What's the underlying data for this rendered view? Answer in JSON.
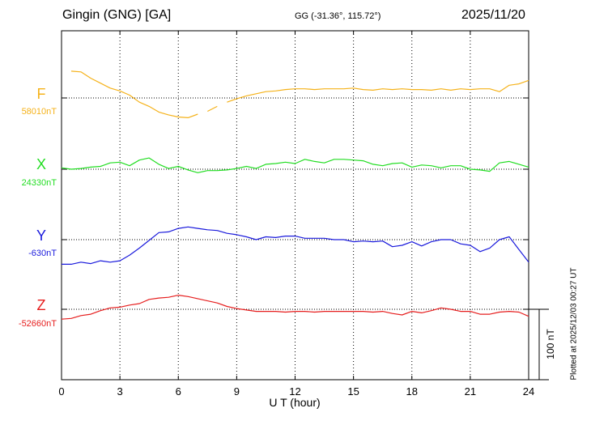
{
  "header": {
    "station": "Gingin (GNG)  [GA]",
    "coords": "GG (-31.36°, 115.72°)",
    "date": "2025/11/20"
  },
  "footer": {
    "plotted": "Plotted at 2025/12/03 00:27 UT"
  },
  "chart_data": {
    "type": "line",
    "title": "Gingin (GNG)  [GA]",
    "xlabel": "U T (hour)",
    "xlim": [
      0,
      24
    ],
    "xticks": [
      0,
      3,
      6,
      9,
      12,
      15,
      18,
      21,
      24
    ],
    "grid": true,
    "scale_bar": {
      "label": "100 nT",
      "value_nT": 100
    },
    "series": [
      {
        "name": "F",
        "baseline_label": "58010nT",
        "color": "#f5b21a",
        "x": [
          0.5,
          1.0,
          1.5,
          2.0,
          2.5,
          3.0,
          3.5,
          4.0,
          4.5,
          5.0,
          5.5,
          6.0,
          6.5,
          7.0,
          7.5,
          8.0,
          8.5,
          9.0,
          9.5,
          10.0,
          10.5,
          11.0,
          11.5,
          12.0,
          12.5,
          13.0,
          13.5,
          14.0,
          14.5,
          15.0,
          15.5,
          16.0,
          16.5,
          17.0,
          17.5,
          18.0,
          18.5,
          19.0,
          19.5,
          20.0,
          20.5,
          21.0,
          21.5,
          22.0,
          22.5,
          23.0,
          23.5,
          24.0
        ],
        "y": [
          38,
          37,
          28,
          21,
          14,
          10,
          4,
          -6,
          -12,
          -20,
          -24,
          -27,
          -28,
          -23,
          -19,
          -12,
          -6,
          -1,
          3,
          6,
          9,
          10,
          12,
          13,
          13,
          12,
          13,
          13,
          13,
          14,
          12,
          11,
          13,
          12,
          13,
          12,
          12,
          11,
          13,
          11,
          13,
          12,
          13,
          13,
          9,
          18,
          20,
          25
        ],
        "gaps_after_x": [
          7.0,
          8.0
        ]
      },
      {
        "name": "X",
        "baseline_label": "24330nT",
        "color": "#22dd22",
        "x": [
          0,
          0.5,
          1.0,
          1.5,
          2.0,
          2.5,
          3.0,
          3.5,
          4.0,
          4.5,
          5.0,
          5.5,
          6.0,
          6.5,
          7.0,
          7.5,
          8.0,
          8.5,
          9.0,
          9.5,
          10.0,
          10.5,
          11.0,
          11.5,
          12.0,
          12.5,
          13.0,
          13.5,
          14.0,
          14.5,
          15.0,
          15.5,
          16.0,
          16.5,
          17.0,
          17.5,
          18.0,
          18.5,
          19.0,
          19.5,
          20.0,
          20.5,
          21.0,
          21.5,
          22.0,
          22.5,
          23.0,
          23.5,
          24.0
        ],
        "y": [
          2,
          0,
          1,
          3,
          4,
          9,
          10,
          5,
          13,
          16,
          7,
          1,
          4,
          -1,
          -5,
          -2,
          -2,
          -1,
          1,
          4,
          1,
          7,
          8,
          10,
          8,
          14,
          11,
          9,
          14,
          14,
          13,
          12,
          7,
          5,
          8,
          9,
          3,
          6,
          5,
          2,
          5,
          5,
          0,
          -1,
          -3,
          9,
          11,
          7,
          3
        ]
      },
      {
        "name": "Y",
        "baseline_label": "-630nT",
        "color": "#1a1adc",
        "x": [
          0,
          0.5,
          1.0,
          1.5,
          2.0,
          2.5,
          3.0,
          3.5,
          4.0,
          4.5,
          5.0,
          5.5,
          6.0,
          6.5,
          7.0,
          7.5,
          8.0,
          8.5,
          9.0,
          9.5,
          10.0,
          10.5,
          11.0,
          11.5,
          12.0,
          12.5,
          13.0,
          13.5,
          14.0,
          14.5,
          15.0,
          15.5,
          16.0,
          16.5,
          17.0,
          17.5,
          18.0,
          18.5,
          19.0,
          19.5,
          20.0,
          20.5,
          21.0,
          21.5,
          22.0,
          22.5,
          23.0,
          23.5,
          24.0
        ],
        "y": [
          -35,
          -35,
          -32,
          -34,
          -30,
          -32,
          -30,
          -22,
          -12,
          -1,
          10,
          11,
          16,
          18,
          16,
          14,
          13,
          9,
          7,
          4,
          0,
          4,
          3,
          5,
          5,
          2,
          2,
          2,
          0,
          0,
          -3,
          -2,
          -3,
          -2,
          -10,
          -8,
          -3,
          -9,
          -3,
          0,
          0,
          -6,
          -8,
          -17,
          -12,
          0,
          4,
          -14,
          -32
        ]
      },
      {
        "name": "Z",
        "baseline_label": "-52660nT",
        "color": "#e61e1e",
        "x": [
          0,
          0.5,
          1.0,
          1.5,
          2.0,
          2.5,
          3.0,
          3.5,
          4.0,
          4.5,
          5.0,
          5.5,
          6.0,
          6.5,
          7.0,
          7.5,
          8.0,
          8.5,
          9.0,
          9.5,
          10.0,
          10.5,
          11.0,
          11.5,
          12.0,
          12.5,
          13.0,
          13.5,
          14.0,
          14.5,
          15.0,
          15.5,
          16.0,
          16.5,
          17.0,
          17.5,
          18.0,
          18.5,
          19.0,
          19.5,
          20.0,
          20.5,
          21.0,
          21.5,
          22.0,
          22.5,
          23.0,
          23.5,
          24.0
        ],
        "y": [
          -14,
          -13,
          -9,
          -7,
          -2,
          2,
          3,
          6,
          8,
          14,
          16,
          17,
          20,
          18,
          15,
          12,
          9,
          4,
          1,
          -1,
          -3,
          -3,
          -3,
          -4,
          -3,
          -3,
          -4,
          -3,
          -3,
          -3,
          -3,
          -3,
          -4,
          -3,
          -6,
          -8,
          -3,
          -5,
          -2,
          2,
          0,
          -3,
          -3,
          -7,
          -7,
          -4,
          -3,
          -4,
          -10
        ]
      }
    ]
  }
}
